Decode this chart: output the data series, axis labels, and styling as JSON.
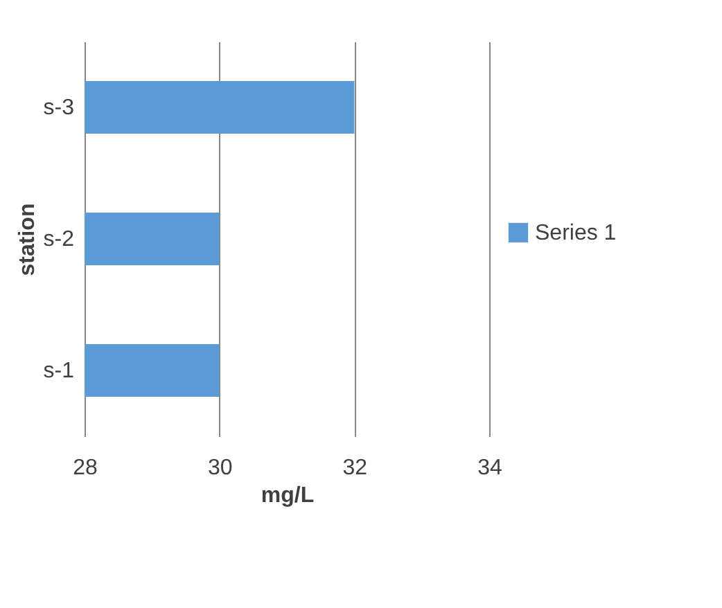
{
  "chart_data": {
    "type": "bar",
    "orientation": "horizontal",
    "xlabel": "mg/L",
    "ylabel": "station",
    "categories": [
      "s-3",
      "s-2",
      "s-1"
    ],
    "series": [
      {
        "name": "Series 1",
        "color": "#5b9bd5",
        "values": [
          32,
          30,
          30
        ]
      }
    ],
    "xlim": [
      28,
      34
    ],
    "xticks": [
      28,
      30,
      32,
      34
    ],
    "grid": "x",
    "legend": "right"
  }
}
